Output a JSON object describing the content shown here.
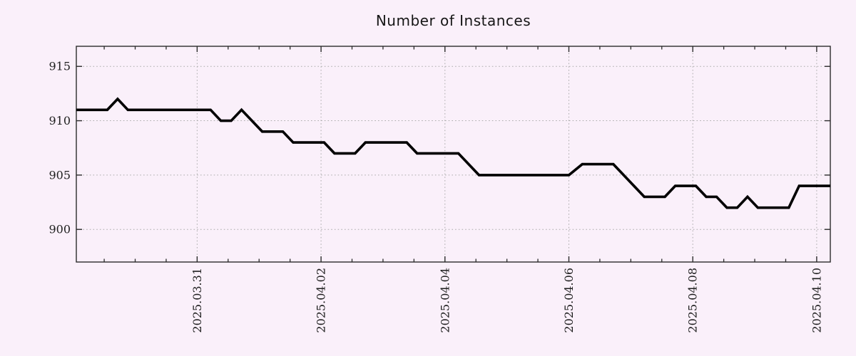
{
  "page": {
    "background": "#faf0fa"
  },
  "chart_data": {
    "type": "line",
    "title": "Number of Instances",
    "legend": {
      "show": false
    },
    "grid": {
      "show": true,
      "style": "dotted",
      "color": "#ababab"
    },
    "x_axis": {
      "kind": "date",
      "reference": "days relative to 2025-03-31",
      "domain": [
        -1.95,
        10.22
      ],
      "major_ticks": [
        {
          "t": 0,
          "label": "2025.03.31"
        },
        {
          "t": 2,
          "label": "2025.04.02"
        },
        {
          "t": 4,
          "label": "2025.04.04"
        },
        {
          "t": 6,
          "label": "2025.04.06"
        },
        {
          "t": 8,
          "label": "2025.04.08"
        },
        {
          "t": 10,
          "label": "2025.04.10"
        }
      ],
      "minor_tick_interval": 0.5,
      "minor_tick_range": [
        -1.5,
        9.5
      ],
      "label_rotation_deg": 90
    },
    "y_axis": {
      "domain": [
        897.0,
        916.85
      ],
      "major_ticks": [
        900,
        905,
        910,
        915
      ],
      "tick_labels": [
        "900",
        "905",
        "910",
        "915"
      ]
    },
    "series": [
      {
        "name": "instances",
        "color": "#000000",
        "points": [
          [
            -1.95,
            911
          ],
          [
            -1.45,
            911
          ],
          [
            -1.283,
            912
          ],
          [
            -1.117,
            911
          ],
          [
            0.217,
            911
          ],
          [
            0.383,
            910
          ],
          [
            0.55,
            910
          ],
          [
            0.717,
            911
          ],
          [
            1.05,
            909
          ],
          [
            1.383,
            909
          ],
          [
            1.55,
            908
          ],
          [
            2.05,
            908
          ],
          [
            2.217,
            907
          ],
          [
            2.55,
            907
          ],
          [
            2.717,
            908
          ],
          [
            3.383,
            908
          ],
          [
            3.55,
            907
          ],
          [
            4.217,
            907
          ],
          [
            4.55,
            905
          ],
          [
            6.0,
            905
          ],
          [
            6.217,
            906
          ],
          [
            6.717,
            906
          ],
          [
            7.217,
            903
          ],
          [
            7.55,
            903
          ],
          [
            7.717,
            904
          ],
          [
            8.05,
            904
          ],
          [
            8.217,
            903
          ],
          [
            8.383,
            903
          ],
          [
            8.55,
            902
          ],
          [
            8.717,
            902
          ],
          [
            8.883,
            903
          ],
          [
            9.05,
            902
          ],
          [
            9.55,
            902
          ],
          [
            9.717,
            904
          ],
          [
            10.22,
            904
          ]
        ]
      }
    ]
  },
  "style": {
    "background": "#faf0fa",
    "axis_color": "#2b2b2b",
    "tick_label_color": "#1f1f1f",
    "title_color": "#161616",
    "grid_color": "#ababab",
    "line_color": "#000000"
  }
}
